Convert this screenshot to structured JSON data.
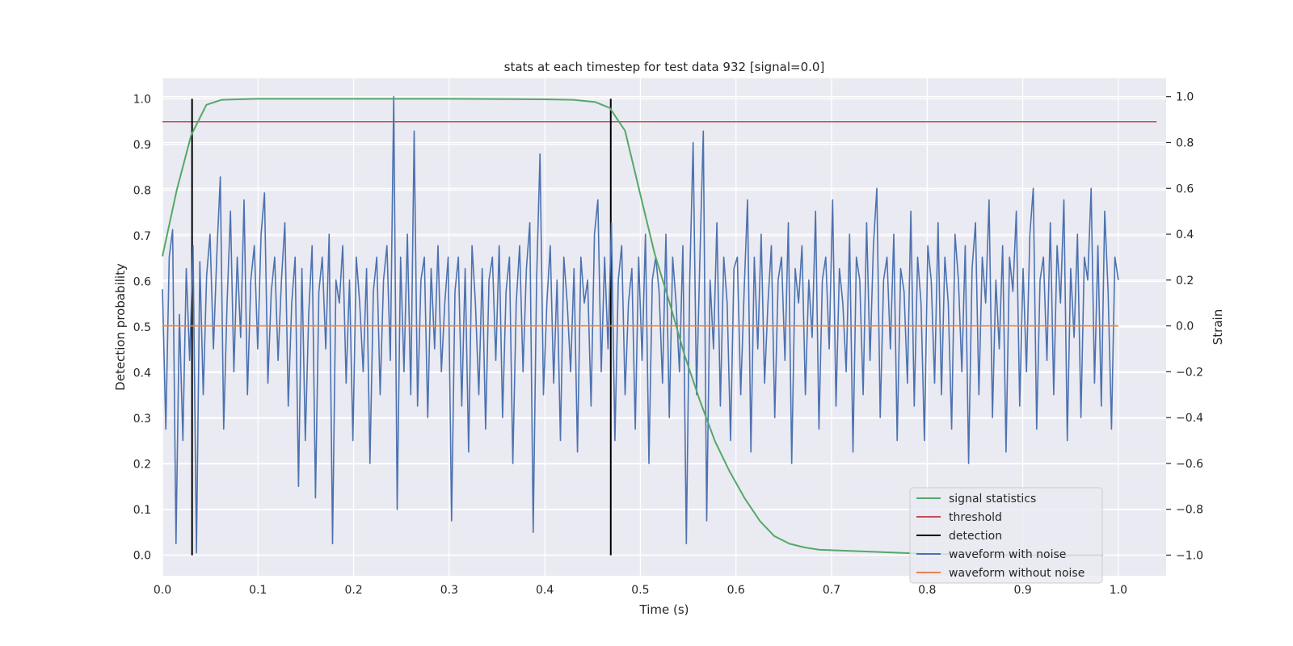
{
  "chart_data": {
    "type": "line",
    "title": "stats at each timestep for test data 932 [signal=0.0]",
    "xlabel": "Time (s)",
    "ylabel": "Detection probability",
    "y2label": "Strain",
    "xlim": [
      0.0,
      1.05
    ],
    "ylim": [
      -0.045,
      1.045
    ],
    "y2lim": [
      -1.09,
      1.08
    ],
    "xticks": [
      "0.0",
      "0.1",
      "0.2",
      "0.3",
      "0.4",
      "0.5",
      "0.6",
      "0.7",
      "0.8",
      "0.9",
      "1.0"
    ],
    "yticks": [
      "0.0",
      "0.1",
      "0.2",
      "0.3",
      "0.4",
      "0.5",
      "0.6",
      "0.7",
      "0.8",
      "0.9",
      "1.0"
    ],
    "y2ticks": [
      "−1.0",
      "−0.8",
      "−0.6",
      "−0.4",
      "−0.2",
      "0.0",
      "0.2",
      "0.4",
      "0.6",
      "0.8",
      "1.0"
    ],
    "grid": true,
    "legend_position": "lower-right",
    "series": [
      {
        "name": "signal statistics",
        "axis": "left",
        "color": "#55a868",
        "x": [
          0.0,
          0.015,
          0.03,
          0.046,
          0.062,
          0.078,
          0.1,
          0.2,
          0.3,
          0.4,
          0.43,
          0.453,
          0.468,
          0.484,
          0.5,
          0.515,
          0.531,
          0.546,
          0.562,
          0.578,
          0.593,
          0.609,
          0.625,
          0.64,
          0.656,
          0.672,
          0.687,
          0.75,
          0.8,
          0.85,
          0.9,
          0.95,
          0.984
        ],
        "y": [
          0.655,
          0.8,
          0.92,
          0.987,
          0.998,
          0.999,
          1.0,
          1.0,
          1.0,
          0.999,
          0.998,
          0.993,
          0.98,
          0.93,
          0.79,
          0.66,
          0.55,
          0.44,
          0.34,
          0.25,
          0.185,
          0.125,
          0.075,
          0.042,
          0.025,
          0.017,
          0.012,
          0.007,
          0.003,
          0.001,
          0.0,
          0.0,
          0.0
        ]
      },
      {
        "name": "threshold",
        "axis": "left",
        "color": "#c44e52",
        "x": [
          0.0,
          1.04
        ],
        "y": [
          0.95,
          0.95
        ]
      },
      {
        "name": "detection",
        "axis": "left",
        "color": "#000000",
        "x": [
          0.031,
          0.469
        ],
        "y": [
          0.0,
          1.0
        ]
      },
      {
        "name": "waveform with noise",
        "axis": "right",
        "color": "#4c72b0",
        "x_range": [
          0.0,
          1.0
        ],
        "y": [
          0.16,
          -0.45,
          0.3,
          0.42,
          -0.95,
          0.05,
          -0.5,
          0.25,
          -0.15,
          0.35,
          -0.99,
          0.28,
          -0.3,
          0.22,
          0.4,
          -0.1,
          0.32,
          0.65,
          -0.45,
          0.1,
          0.5,
          -0.2,
          0.3,
          -0.05,
          0.55,
          -0.3,
          0.2,
          0.35,
          -0.1,
          0.4,
          0.58,
          -0.25,
          0.15,
          0.3,
          -0.15,
          0.2,
          0.45,
          -0.35,
          0.1,
          0.3,
          -0.7,
          0.25,
          -0.5,
          0.05,
          0.35,
          -0.75,
          0.15,
          0.3,
          -0.1,
          0.4,
          -0.95,
          0.2,
          0.1,
          0.35,
          -0.25,
          0.2,
          -0.5,
          0.3,
          0.1,
          -0.2,
          0.25,
          -0.6,
          0.15,
          0.3,
          -0.3,
          0.2,
          0.35,
          -0.15,
          1.0,
          -0.8,
          0.3,
          -0.2,
          0.4,
          -0.3,
          0.85,
          -0.35,
          0.2,
          0.3,
          -0.4,
          0.25,
          -0.1,
          0.35,
          -0.2,
          0.1,
          0.3,
          -0.85,
          0.15,
          0.3,
          -0.35,
          0.25,
          -0.55,
          0.35,
          0.1,
          -0.3,
          0.25,
          -0.45,
          0.2,
          0.3,
          -0.15,
          0.35,
          -0.4,
          0.15,
          0.3,
          -0.6,
          0.1,
          0.35,
          -0.2,
          0.25,
          0.45,
          -0.9,
          0.2,
          0.75,
          -0.3,
          0.1,
          0.35,
          -0.25,
          0.2,
          -0.5,
          0.3,
          0.1,
          -0.2,
          0.25,
          -0.55,
          0.3,
          0.1,
          0.2,
          -0.35,
          0.4,
          0.55,
          -0.2,
          0.3,
          -0.1,
          0.45,
          -0.5,
          0.2,
          0.35,
          -0.3,
          0.1,
          0.25,
          -0.45,
          0.3,
          -0.15,
          0.4,
          -0.6,
          0.2,
          0.3,
          0.15,
          -0.25,
          0.4,
          -0.4,
          0.3,
          0.1,
          -0.2,
          0.35,
          -0.95,
          0.2,
          0.8,
          -0.3,
          0.3,
          0.85,
          -0.85,
          0.2,
          -0.1,
          0.45,
          -0.35,
          0.3,
          0.1,
          -0.5,
          0.25,
          0.3,
          -0.3,
          0.15,
          0.55,
          -0.55,
          0.3,
          -0.1,
          0.4,
          -0.25,
          0.1,
          0.35,
          -0.4,
          0.2,
          0.3,
          -0.15,
          0.45,
          -0.6,
          0.25,
          0.1,
          0.35,
          -0.3,
          0.2,
          -0.05,
          0.5,
          -0.45,
          0.2,
          0.3,
          -0.1,
          0.55,
          -0.35,
          0.25,
          0.1,
          -0.2,
          0.4,
          -0.55,
          0.3,
          0.2,
          -0.3,
          0.45,
          -0.15,
          0.35,
          0.6,
          -0.4,
          0.2,
          0.3,
          -0.1,
          0.4,
          -0.5,
          0.25,
          0.15,
          -0.25,
          0.5,
          -0.35,
          0.3,
          0.1,
          -0.5,
          0.35,
          0.2,
          -0.25,
          0.45,
          -0.3,
          0.3,
          0.1,
          -0.45,
          0.4,
          0.2,
          -0.2,
          0.35,
          -0.6,
          0.25,
          0.45,
          -0.3,
          0.3,
          0.1,
          0.55,
          -0.4,
          0.2,
          -0.1,
          0.35,
          -0.55,
          0.3,
          0.15,
          0.5,
          -0.35,
          0.25,
          -0.2,
          0.4,
          0.6,
          -0.45,
          0.2,
          0.3,
          -0.15,
          0.45,
          -0.3,
          0.35,
          0.1,
          0.55,
          -0.5,
          0.25,
          -0.05,
          0.4,
          -0.4,
          0.3,
          0.2,
          0.6,
          -0.25,
          0.35,
          -0.35,
          0.5,
          0.15,
          -0.45,
          0.3,
          0.2
        ]
      },
      {
        "name": "waveform without noise",
        "axis": "right",
        "color": "#dd8452",
        "x": [
          0.0,
          1.0
        ],
        "y": [
          0.0,
          0.0
        ]
      }
    ]
  }
}
